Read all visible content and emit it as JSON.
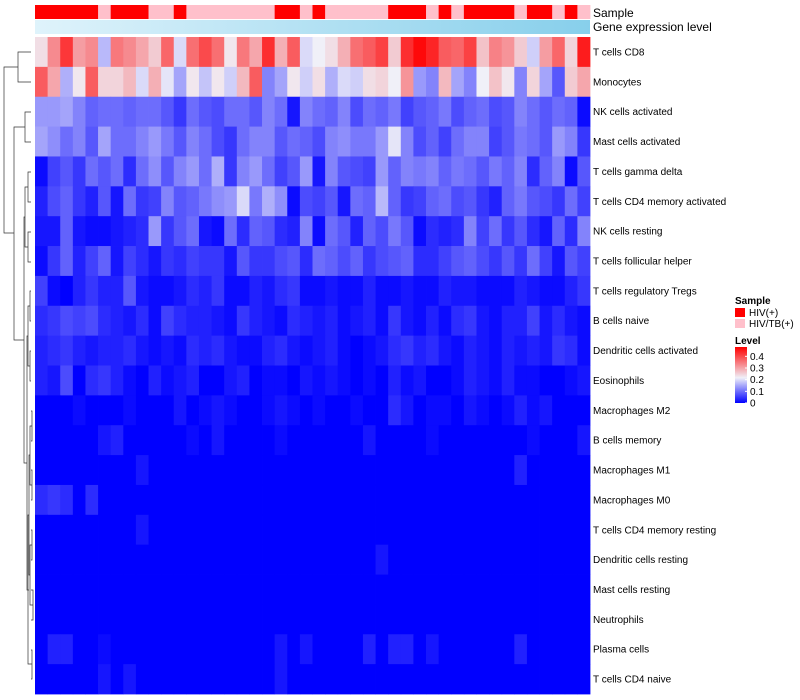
{
  "chart_data": {
    "type": "heatmap",
    "title": "",
    "annotation_labels": {
      "sample": "Sample",
      "expression": "Gene expression level"
    },
    "sample_groups": [
      "HIV(+)",
      "HIV(+)",
      "HIV(+)",
      "HIV(+)",
      "HIV(+)",
      "HIV/TB(+)",
      "HIV(+)",
      "HIV(+)",
      "HIV(+)",
      "HIV/TB(+)",
      "HIV/TB(+)",
      "HIV(+)",
      "HIV/TB(+)",
      "HIV/TB(+)",
      "HIV/TB(+)",
      "HIV/TB(+)",
      "HIV/TB(+)",
      "HIV/TB(+)",
      "HIV/TB(+)",
      "HIV(+)",
      "HIV(+)",
      "HIV/TB(+)",
      "HIV(+)",
      "HIV/TB(+)",
      "HIV/TB(+)",
      "HIV/TB(+)",
      "HIV/TB(+)",
      "HIV/TB(+)",
      "HIV(+)",
      "HIV(+)",
      "HIV(+)",
      "HIV/TB(+)",
      "HIV(+)",
      "HIV/TB(+)",
      "HIV(+)",
      "HIV(+)",
      "HIV(+)",
      "HIV(+)",
      "HIV/TB(+)",
      "HIV(+)",
      "HIV(+)",
      "HIV/TB(+)",
      "HIV(+)",
      "HIV/TB(+)"
    ],
    "rows": [
      "T cells CD8",
      "Monocytes",
      "NK cells activated",
      "Mast cells activated",
      "T cells gamma delta",
      "T cells CD4 memory activated",
      "NK cells resting",
      "T cells follicular helper",
      "T cells regulatory  Tregs",
      "B cells naive",
      "Dendritic cells activated",
      "Eosinophils",
      "Macrophages M2",
      "B cells memory",
      "Macrophages M1",
      "Macrophages M0",
      "T cells CD4 memory resting",
      "Dendritic cells resting",
      "Mast cells resting",
      "Neutrophils",
      "Plasma cells",
      "T cells CD4 naive"
    ],
    "values": [
      [
        0.24,
        0.33,
        0.42,
        0.31,
        0.33,
        0.17,
        0.35,
        0.33,
        0.3,
        0.26,
        0.37,
        0.2,
        0.36,
        0.4,
        0.36,
        0.23,
        0.35,
        0.3,
        0.43,
        0.29,
        0.38,
        0.2,
        0.22,
        0.24,
        0.29,
        0.36,
        0.38,
        0.41,
        0.26,
        0.43,
        0.47,
        0.44,
        0.38,
        0.37,
        0.41,
        0.27,
        0.34,
        0.32,
        0.26,
        0.19,
        0.31,
        0.37,
        0.25,
        0.45
      ],
      [
        0.38,
        0.3,
        0.16,
        0.23,
        0.38,
        0.25,
        0.25,
        0.28,
        0.2,
        0.29,
        0.21,
        0.15,
        0.23,
        0.18,
        0.23,
        0.19,
        0.28,
        0.38,
        0.12,
        0.15,
        0.23,
        0.19,
        0.24,
        0.16,
        0.2,
        0.19,
        0.24,
        0.25,
        0.22,
        0.32,
        0.14,
        0.12,
        0.28,
        0.15,
        0.12,
        0.22,
        0.27,
        0.23,
        0.12,
        0.25,
        0.15,
        0.08,
        0.26,
        0.3
      ],
      [
        0.14,
        0.14,
        0.15,
        0.12,
        0.09,
        0.1,
        0.1,
        0.09,
        0.1,
        0.1,
        0.08,
        0.05,
        0.1,
        0.08,
        0.07,
        0.1,
        0.1,
        0.08,
        0.12,
        0.1,
        0.02,
        0.12,
        0.1,
        0.09,
        0.12,
        0.07,
        0.1,
        0.09,
        0.11,
        0.06,
        0.08,
        0.09,
        0.11,
        0.07,
        0.09,
        0.1,
        0.07,
        0.08,
        0.12,
        0.1,
        0.08,
        0.1,
        0.09,
        0.01
      ],
      [
        0.15,
        0.13,
        0.1,
        0.12,
        0.08,
        0.15,
        0.1,
        0.1,
        0.12,
        0.14,
        0.11,
        0.08,
        0.12,
        0.1,
        0.07,
        0.05,
        0.1,
        0.12,
        0.12,
        0.08,
        0.1,
        0.09,
        0.07,
        0.12,
        0.13,
        0.11,
        0.11,
        0.14,
        0.21,
        0.12,
        0.07,
        0.09,
        0.06,
        0.1,
        0.12,
        0.12,
        0.06,
        0.08,
        0.11,
        0.1,
        0.08,
        0.14,
        0.12,
        0.05
      ],
      [
        0.01,
        0.06,
        0.08,
        0.05,
        0.1,
        0.08,
        0.1,
        0.04,
        0.1,
        0.13,
        0.08,
        0.12,
        0.14,
        0.1,
        0.16,
        0.05,
        0.12,
        0.14,
        0.1,
        0.06,
        0.08,
        0.14,
        0.02,
        0.12,
        0.08,
        0.07,
        0.06,
        0.14,
        0.09,
        0.12,
        0.11,
        0.12,
        0.09,
        0.11,
        0.1,
        0.08,
        0.11,
        0.09,
        0.12,
        0.04,
        0.09,
        0.12,
        0.01,
        0.08
      ],
      [
        0.03,
        0.07,
        0.09,
        0.05,
        0.03,
        0.08,
        0.02,
        0.1,
        0.05,
        0.06,
        0.12,
        0.08,
        0.09,
        0.11,
        0.13,
        0.14,
        0.2,
        0.11,
        0.16,
        0.13,
        0.01,
        0.07,
        0.06,
        0.08,
        0.02,
        0.1,
        0.09,
        0.17,
        0.09,
        0.05,
        0.06,
        0.09,
        0.1,
        0.07,
        0.08,
        0.05,
        0.03,
        0.09,
        0.11,
        0.08,
        0.07,
        0.05,
        0.1,
        0.06
      ],
      [
        0.02,
        0.02,
        0.09,
        0.02,
        0.01,
        0.01,
        0.02,
        0.03,
        0.04,
        0.14,
        0.05,
        0.08,
        0.1,
        0.02,
        0.01,
        0.1,
        0.04,
        0.09,
        0.08,
        0.04,
        0.03,
        0.12,
        0.01,
        0.1,
        0.08,
        0.03,
        0.09,
        0.07,
        0.11,
        0.08,
        0.01,
        0.04,
        0.03,
        0.04,
        0.12,
        0.06,
        0.1,
        0.05,
        0.08,
        0.04,
        0.02,
        0.09,
        0.04,
        0.12
      ],
      [
        0.01,
        0.05,
        0.09,
        0.03,
        0.06,
        0.09,
        0.02,
        0.06,
        0.04,
        0.02,
        0.05,
        0.04,
        0.06,
        0.05,
        0.05,
        0.02,
        0.08,
        0.05,
        0.05,
        0.07,
        0.08,
        0.04,
        0.1,
        0.09,
        0.07,
        0.09,
        0.05,
        0.07,
        0.08,
        0.09,
        0.04,
        0.04,
        0.06,
        0.08,
        0.09,
        0.07,
        0.05,
        0.08,
        0.05,
        0.1,
        0.06,
        0.02,
        0.08,
        0.06
      ],
      [
        0.06,
        0.01,
        0.0,
        0.03,
        0.05,
        0.03,
        0.03,
        0.08,
        0.02,
        0.01,
        0.01,
        0.02,
        0.04,
        0.03,
        0.05,
        0.01,
        0.01,
        0.03,
        0.02,
        0.04,
        0.05,
        0.01,
        0.01,
        0.02,
        0.01,
        0.01,
        0.03,
        0.01,
        0.01,
        0.02,
        0.01,
        0.01,
        0.03,
        0.02,
        0.02,
        0.01,
        0.01,
        0.01,
        0.03,
        0.02,
        0.01,
        0.01,
        0.03,
        0.05
      ],
      [
        0.04,
        0.05,
        0.07,
        0.06,
        0.07,
        0.04,
        0.03,
        0.02,
        0.04,
        0.01,
        0.06,
        0.04,
        0.03,
        0.03,
        0.02,
        0.01,
        0.05,
        0.03,
        0.02,
        0.01,
        0.04,
        0.03,
        0.02,
        0.03,
        0.01,
        0.02,
        0.03,
        0.01,
        0.05,
        0.02,
        0.01,
        0.03,
        0.01,
        0.04,
        0.05,
        0.02,
        0.01,
        0.03,
        0.03,
        0.06,
        0.02,
        0.04,
        0.02,
        0.01
      ],
      [
        0.03,
        0.04,
        0.05,
        0.03,
        0.02,
        0.03,
        0.03,
        0.04,
        0.02,
        0.01,
        0.02,
        0.01,
        0.04,
        0.03,
        0.04,
        0.02,
        0.01,
        0.01,
        0.03,
        0.04,
        0.02,
        0.01,
        0.02,
        0.03,
        0.01,
        0.0,
        0.01,
        0.02,
        0.04,
        0.05,
        0.03,
        0.04,
        0.02,
        0.01,
        0.03,
        0.02,
        0.01,
        0.03,
        0.02,
        0.03,
        0.02,
        0.05,
        0.04,
        0.01
      ],
      [
        0.03,
        0.02,
        0.07,
        0.0,
        0.04,
        0.05,
        0.03,
        0.01,
        0.0,
        0.03,
        0.01,
        0.02,
        0.03,
        0.0,
        0.0,
        0.02,
        0.03,
        0.0,
        0.01,
        0.01,
        0.0,
        0.02,
        0.01,
        0.02,
        0.01,
        0.0,
        0.01,
        0.0,
        0.03,
        0.01,
        0.02,
        0.0,
        0.0,
        0.01,
        0.03,
        0.02,
        0.01,
        0.03,
        0.01,
        0.01,
        0.0,
        0.0,
        0.01,
        0.02
      ],
      [
        0.0,
        0.0,
        0.0,
        0.01,
        0.0,
        0.0,
        0.0,
        0.01,
        0.0,
        0.0,
        0.0,
        0.02,
        0.0,
        0.01,
        0.02,
        0.01,
        0.0,
        0.0,
        0.01,
        0.02,
        0.01,
        0.0,
        0.01,
        0.0,
        0.0,
        0.01,
        0.0,
        0.0,
        0.04,
        0.02,
        0.0,
        0.01,
        0.01,
        0.0,
        0.02,
        0.01,
        0.0,
        0.01,
        0.03,
        0.01,
        0.02,
        0.0,
        0.0,
        0.0
      ],
      [
        0.0,
        0.0,
        0.0,
        0.0,
        0.0,
        0.02,
        0.03,
        0.0,
        0.0,
        0.0,
        0.0,
        0.0,
        0.01,
        0.0,
        0.02,
        0.0,
        0.0,
        0.0,
        0.0,
        0.01,
        0.0,
        0.0,
        0.0,
        0.0,
        0.0,
        0.0,
        0.02,
        0.0,
        0.0,
        0.0,
        0.0,
        0.01,
        0.0,
        0.0,
        0.0,
        0.0,
        0.0,
        0.0,
        0.0,
        0.01,
        0.0,
        0.0,
        0.0,
        0.02
      ],
      [
        0.0,
        0.0,
        0.0,
        0.0,
        0.0,
        0.0,
        0.0,
        0.0,
        0.02,
        0.0,
        0.0,
        0.0,
        0.0,
        0.0,
        0.0,
        0.0,
        0.0,
        0.0,
        0.0,
        0.0,
        0.0,
        0.0,
        0.0,
        0.0,
        0.0,
        0.0,
        0.0,
        0.0,
        0.0,
        0.0,
        0.0,
        0.0,
        0.0,
        0.0,
        0.0,
        0.0,
        0.0,
        0.0,
        0.03,
        0.0,
        0.0,
        0.0,
        0.0,
        0.0
      ],
      [
        0.04,
        0.05,
        0.04,
        0.0,
        0.04,
        0.0,
        0.0,
        0.0,
        0.0,
        0.0,
        0.0,
        0.0,
        0.0,
        0.0,
        0.0,
        0.0,
        0.0,
        0.0,
        0.0,
        0.0,
        0.0,
        0.0,
        0.0,
        0.0,
        0.0,
        0.0,
        0.0,
        0.0,
        0.0,
        0.0,
        0.0,
        0.0,
        0.0,
        0.0,
        0.0,
        0.0,
        0.0,
        0.0,
        0.0,
        0.0,
        0.0,
        0.0,
        0.0,
        0.0
      ],
      [
        0.0,
        0.0,
        0.0,
        0.0,
        0.0,
        0.0,
        0.0,
        0.0,
        0.02,
        0.0,
        0.0,
        0.0,
        0.0,
        0.0,
        0.0,
        0.0,
        0.0,
        0.0,
        0.0,
        0.0,
        0.0,
        0.0,
        0.0,
        0.0,
        0.0,
        0.0,
        0.0,
        0.0,
        0.0,
        0.0,
        0.0,
        0.0,
        0.0,
        0.0,
        0.0,
        0.0,
        0.0,
        0.0,
        0.0,
        0.0,
        0.0,
        0.0,
        0.0,
        0.0
      ],
      [
        0.0,
        0.0,
        0.0,
        0.0,
        0.0,
        0.0,
        0.0,
        0.0,
        0.0,
        0.0,
        0.0,
        0.0,
        0.0,
        0.0,
        0.0,
        0.0,
        0.0,
        0.0,
        0.0,
        0.0,
        0.0,
        0.0,
        0.0,
        0.0,
        0.0,
        0.0,
        0.0,
        0.02,
        0.0,
        0.0,
        0.0,
        0.0,
        0.0,
        0.0,
        0.0,
        0.0,
        0.0,
        0.0,
        0.0,
        0.0,
        0.0,
        0.0,
        0.0,
        0.0
      ],
      [
        0.0,
        0.0,
        0.0,
        0.0,
        0.0,
        0.0,
        0.0,
        0.0,
        0.0,
        0.0,
        0.0,
        0.0,
        0.0,
        0.0,
        0.0,
        0.0,
        0.0,
        0.0,
        0.0,
        0.0,
        0.0,
        0.0,
        0.0,
        0.0,
        0.0,
        0.0,
        0.0,
        0.0,
        0.0,
        0.0,
        0.0,
        0.0,
        0.0,
        0.0,
        0.0,
        0.0,
        0.0,
        0.0,
        0.0,
        0.0,
        0.0,
        0.0,
        0.0,
        0.0
      ],
      [
        0.0,
        0.0,
        0.0,
        0.0,
        0.0,
        0.0,
        0.0,
        0.0,
        0.0,
        0.0,
        0.0,
        0.0,
        0.0,
        0.0,
        0.0,
        0.0,
        0.0,
        0.0,
        0.0,
        0.0,
        0.0,
        0.0,
        0.0,
        0.0,
        0.0,
        0.0,
        0.0,
        0.0,
        0.0,
        0.0,
        0.0,
        0.0,
        0.0,
        0.0,
        0.0,
        0.0,
        0.0,
        0.0,
        0.0,
        0.0,
        0.0,
        0.0,
        0.0,
        0.0
      ],
      [
        0.0,
        0.03,
        0.03,
        0.0,
        0.0,
        0.01,
        0.0,
        0.0,
        0.0,
        0.0,
        0.0,
        0.0,
        0.0,
        0.0,
        0.0,
        0.0,
        0.0,
        0.0,
        0.0,
        0.02,
        0.0,
        0.02,
        0.0,
        0.0,
        0.0,
        0.0,
        0.03,
        0.0,
        0.03,
        0.03,
        0.0,
        0.02,
        0.0,
        0.0,
        0.0,
        0.0,
        0.0,
        0.0,
        0.03,
        0.0,
        0.0,
        0.0,
        0.0,
        0.0
      ],
      [
        0.0,
        0.0,
        0.0,
        0.0,
        0.0,
        0.02,
        0.0,
        0.02,
        0.0,
        0.0,
        0.0,
        0.0,
        0.0,
        0.0,
        0.0,
        0.0,
        0.0,
        0.0,
        0.0,
        0.02,
        0.0,
        0.0,
        0.0,
        0.0,
        0.0,
        0.0,
        0.0,
        0.0,
        0.0,
        0.0,
        0.0,
        0.0,
        0.0,
        0.0,
        0.0,
        0.0,
        0.0,
        0.0,
        0.0,
        0.0,
        0.0,
        0.0,
        0.0,
        0.0
      ]
    ],
    "color_scale": {
      "min": 0,
      "max": 0.48,
      "low": "#0000ff",
      "mid": "#f0f0f8",
      "mid_value": 0.22,
      "high": "#ff0000"
    },
    "legend": {
      "placement": "right",
      "sample_title": "Sample",
      "sample_entries": [
        {
          "label": "HIV(+)",
          "color": "#ff0000"
        },
        {
          "label": "HIV/TB(+)",
          "color": "#ffc0cb"
        }
      ],
      "level_title": "Level",
      "level_ticks": [
        0.4,
        0.3,
        0.2,
        0.1,
        0
      ]
    },
    "expression_bar_colors": [
      "#dff3fb",
      "#87cfeb"
    ],
    "dendrogram": "rows"
  }
}
